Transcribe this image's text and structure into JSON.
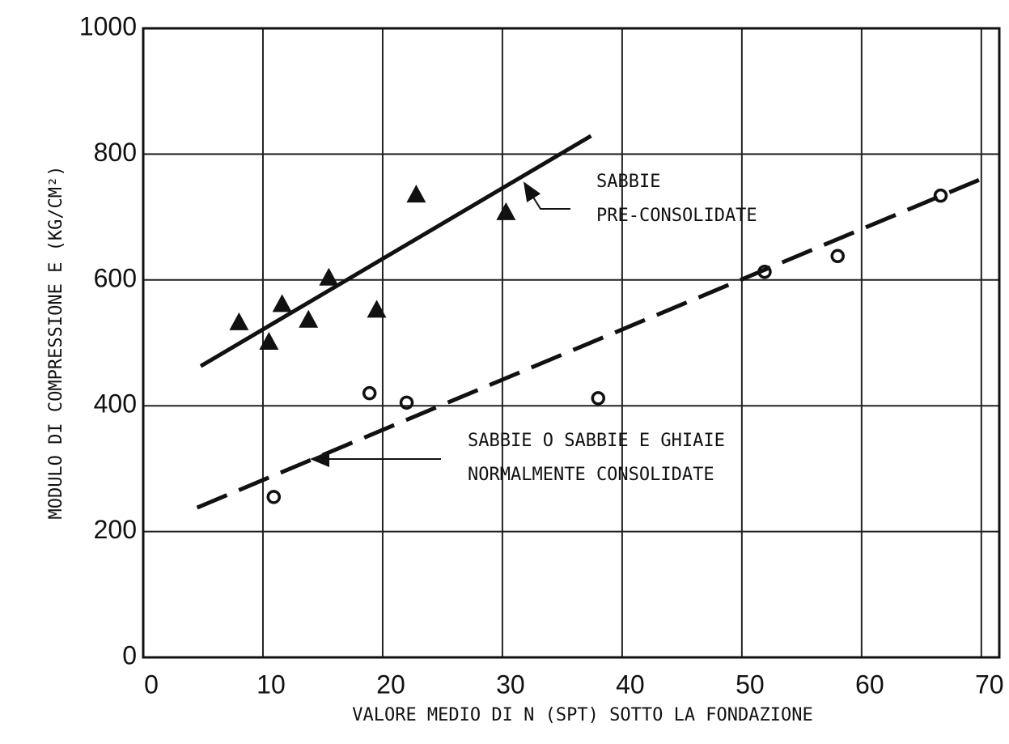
{
  "chart_data": {
    "type": "scatter",
    "xlabel": "VALORE MEDIO DI N (SPT) SOTTO LA FONDAZIONE",
    "ylabel": "MODULO DI COMPRESSIONE E (KG/CM²)",
    "xlim": [
      0,
      71.5
    ],
    "ylim": [
      0,
      1000
    ],
    "xticks": [
      0,
      10,
      20,
      30,
      40,
      50,
      60,
      70
    ],
    "yticks": [
      0,
      200,
      400,
      600,
      800,
      1000
    ],
    "grid": true,
    "series": [
      {
        "marker": "triangle",
        "color": "#111111",
        "x": [
          8.0,
          10.5,
          11.6,
          13.8,
          15.5,
          19.5,
          22.8,
          30.3
        ],
        "values": [
          533,
          502,
          562,
          537,
          604,
          553,
          736,
          708
        ]
      },
      {
        "marker": "circle",
        "color": "#111111",
        "x": [
          10.9,
          18.9,
          22.0,
          38.0,
          51.9,
          58.0,
          66.6
        ],
        "values": [
          255,
          420,
          405,
          412,
          613,
          638,
          734
        ]
      }
    ],
    "lines": [
      {
        "style": "solid",
        "x": [
          4.8,
          37.4
        ],
        "values": [
          463,
          829
        ]
      },
      {
        "style": "dashed",
        "x": [
          4.5,
          69.8
        ],
        "values": [
          238,
          759
        ]
      }
    ],
    "annotations": [
      {
        "lines": [
          "SABBIE",
          "PRE-CONSOLIDATE"
        ]
      },
      {
        "lines": [
          "SABBIE O SABBIE E GHIAIE",
          "NORMALMENTE CONSOLIDATE"
        ]
      }
    ]
  }
}
